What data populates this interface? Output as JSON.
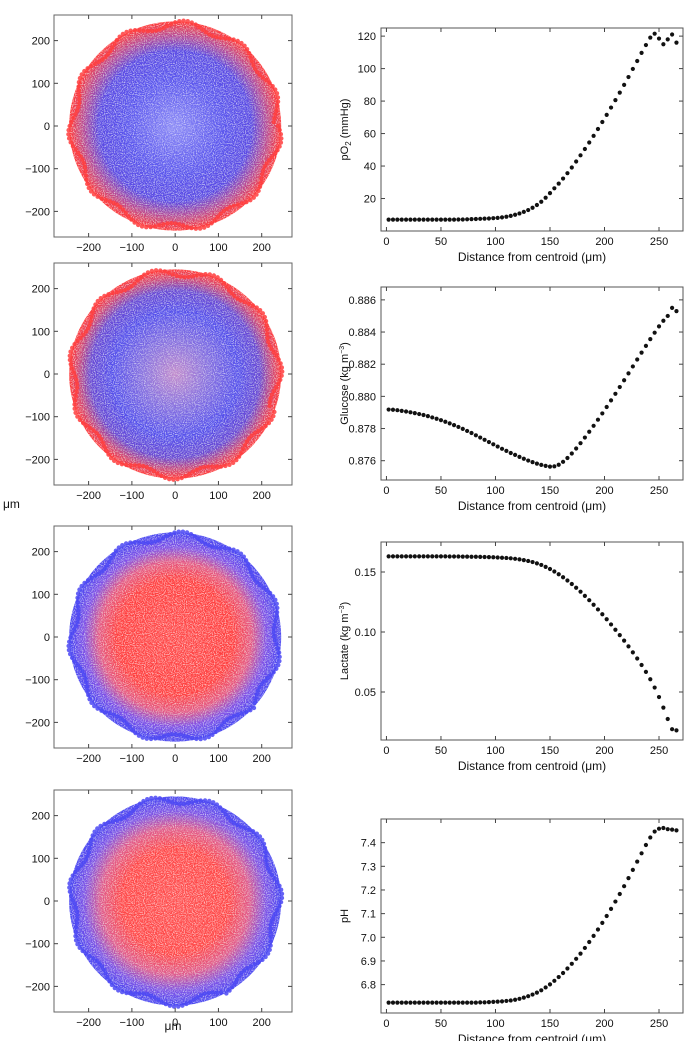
{
  "figure": {
    "shared_xlabel_left": "μm",
    "shared_ylabel_left": "μm",
    "colors": {
      "red": "#ff3b3b",
      "blue": "#4444ff",
      "marker": "#111111"
    }
  },
  "chart_data": [
    {
      "type": "scatter",
      "name": "spheroid-po2-map",
      "title": "",
      "xlim": [
        -280,
        270
      ],
      "ylim": [
        -260,
        260
      ],
      "xticks": [
        -200,
        -100,
        0,
        100,
        200
      ],
      "yticks": [
        -200,
        -100,
        0,
        100,
        200
      ],
      "xtick_labels": [
        "−200",
        "−100",
        "0",
        "100",
        "200"
      ],
      "ytick_labels": [
        "−200",
        "−100",
        "0",
        "100",
        "200"
      ],
      "radius": 245,
      "color_scale": "red = high, blue = low",
      "center_color": "blue",
      "edge_color": "red"
    },
    {
      "type": "scatter",
      "name": "po2-profile",
      "xlabel": "Distance from centroid (μm)",
      "ylabel_parts": [
        "pO",
        "2",
        " (mmHg)"
      ],
      "xlim": [
        -5,
        272
      ],
      "ylim": [
        0,
        125
      ],
      "xticks": [
        0,
        50,
        100,
        150,
        200,
        250
      ],
      "yticks": [
        20,
        40,
        60,
        80,
        100,
        120
      ],
      "xtick_labels": [
        "0",
        "50",
        "100",
        "150",
        "200",
        "250"
      ],
      "ytick_labels": [
        "20",
        "40",
        "60",
        "80",
        "100",
        "120"
      ],
      "x": [
        2,
        6,
        10,
        14,
        18,
        22,
        26,
        30,
        34,
        38,
        42,
        46,
        50,
        54,
        58,
        62,
        66,
        70,
        74,
        78,
        82,
        86,
        90,
        94,
        98,
        102,
        106,
        110,
        114,
        118,
        122,
        126,
        130,
        134,
        138,
        142,
        146,
        150,
        154,
        158,
        162,
        166,
        170,
        174,
        178,
        182,
        186,
        190,
        194,
        198,
        202,
        206,
        210,
        214,
        218,
        222,
        226,
        230,
        234,
        238,
        242,
        246,
        250,
        254,
        258,
        262,
        266
      ],
      "y": [
        7.0,
        7.0,
        7.0,
        7.0,
        7.0,
        7.0,
        7.0,
        7.0,
        7.0,
        7.0,
        7.0,
        7.0,
        7.0,
        7.0,
        7.0,
        7.0,
        7.1,
        7.1,
        7.2,
        7.3,
        7.4,
        7.5,
        7.6,
        7.7,
        7.9,
        8.1,
        8.4,
        8.8,
        9.3,
        10.0,
        10.8,
        11.8,
        12.9,
        14.3,
        16.0,
        18.0,
        20.5,
        23.3,
        26.3,
        29.2,
        32.3,
        35.6,
        39.1,
        42.8,
        46.6,
        50.5,
        54.5,
        58.6,
        62.8,
        67.1,
        71.5,
        76.0,
        80.6,
        85.2,
        90.0,
        94.8,
        99.8,
        104.7,
        109.7,
        114.5,
        119.1,
        121.5,
        118.5,
        115.0,
        118.0,
        121.0,
        116.0
      ]
    },
    {
      "type": "scatter",
      "name": "spheroid-glucose-map",
      "title": "",
      "xlim": [
        -280,
        270
      ],
      "ylim": [
        -260,
        260
      ],
      "xticks": [
        -200,
        -100,
        0,
        100,
        200
      ],
      "yticks": [
        -200,
        -100,
        0,
        100,
        200
      ],
      "xtick_labels": [
        "−200",
        "−100",
        "0",
        "100",
        "200"
      ],
      "ytick_labels": [
        "−200",
        "−100",
        "0",
        "100",
        "200"
      ],
      "radius": 245,
      "color_scale": "red = high, blue = low",
      "center_color": "purple",
      "edge_color": "red"
    },
    {
      "type": "scatter",
      "name": "glucose-profile",
      "xlabel": "Distance from centroid (μm)",
      "ylabel_parts": [
        "Glucose (kg m",
        "−3",
        ")"
      ],
      "xlim": [
        -5,
        272
      ],
      "ylim": [
        0.8748,
        0.8868
      ],
      "xticks": [
        0,
        50,
        100,
        150,
        200,
        250
      ],
      "yticks": [
        0.876,
        0.878,
        0.88,
        0.882,
        0.884,
        0.886
      ],
      "xtick_labels": [
        "0",
        "50",
        "100",
        "150",
        "200",
        "250"
      ],
      "ytick_labels": [
        "0.876",
        "0.878",
        "0.880",
        "0.882",
        "0.884",
        "0.886"
      ],
      "x": [
        2,
        6,
        10,
        14,
        18,
        22,
        26,
        30,
        34,
        38,
        42,
        46,
        50,
        54,
        58,
        62,
        66,
        70,
        74,
        78,
        82,
        86,
        90,
        94,
        98,
        102,
        106,
        110,
        114,
        118,
        122,
        126,
        130,
        134,
        138,
        142,
        146,
        150,
        154,
        158,
        162,
        166,
        170,
        174,
        178,
        182,
        186,
        190,
        194,
        198,
        202,
        206,
        210,
        214,
        218,
        222,
        226,
        230,
        234,
        238,
        242,
        246,
        250,
        254,
        258,
        262,
        266
      ],
      "y": [
        0.87918,
        0.87917,
        0.87914,
        0.8791,
        0.87906,
        0.87901,
        0.87896,
        0.8789,
        0.87884,
        0.87877,
        0.87869,
        0.87861,
        0.87852,
        0.87842,
        0.87832,
        0.87821,
        0.8781,
        0.87798,
        0.87785,
        0.87772,
        0.87758,
        0.87744,
        0.8773,
        0.87716,
        0.87702,
        0.87688,
        0.87674,
        0.87661,
        0.87648,
        0.87636,
        0.87624,
        0.87612,
        0.87601,
        0.87591,
        0.87582,
        0.87574,
        0.87568,
        0.87563,
        0.87565,
        0.87575,
        0.87593,
        0.87617,
        0.87645,
        0.87676,
        0.87709,
        0.87744,
        0.8778,
        0.87817,
        0.87855,
        0.87894,
        0.87934,
        0.87975,
        0.88016,
        0.88058,
        0.881,
        0.88143,
        0.88186,
        0.88229,
        0.88272,
        0.88314,
        0.88356,
        0.88396,
        0.88435,
        0.8847,
        0.885,
        0.8855,
        0.8853
      ]
    },
    {
      "type": "scatter",
      "name": "spheroid-lactate-map",
      "title": "",
      "xlim": [
        -280,
        270
      ],
      "ylim": [
        -260,
        260
      ],
      "xticks": [
        -200,
        -100,
        0,
        100,
        200
      ],
      "yticks": [
        -200,
        -100,
        0,
        100,
        200
      ],
      "xtick_labels": [
        "−200",
        "−100",
        "0",
        "100",
        "200"
      ],
      "ytick_labels": [
        "−200",
        "−100",
        "0",
        "100",
        "200"
      ],
      "radius": 245,
      "color_scale": "red = high, blue = low",
      "center_color": "red",
      "edge_color": "blue"
    },
    {
      "type": "scatter",
      "name": "lactate-profile",
      "xlabel": "Distance from centroid (μm)",
      "ylabel_parts": [
        "Lactate (kg m",
        "−3",
        ")"
      ],
      "xlim": [
        -5,
        272
      ],
      "ylim": [
        0.01,
        0.175
      ],
      "xticks": [
        0,
        50,
        100,
        150,
        200,
        250
      ],
      "yticks": [
        0.05,
        0.1,
        0.15
      ],
      "xtick_labels": [
        "0",
        "50",
        "100",
        "150",
        "200",
        "250"
      ],
      "ytick_labels": [
        "0.05",
        "0.10",
        "0.15"
      ],
      "x": [
        2,
        6,
        10,
        14,
        18,
        22,
        26,
        30,
        34,
        38,
        42,
        46,
        50,
        54,
        58,
        62,
        66,
        70,
        74,
        78,
        82,
        86,
        90,
        94,
        98,
        102,
        106,
        110,
        114,
        118,
        122,
        126,
        130,
        134,
        138,
        142,
        146,
        150,
        154,
        158,
        162,
        166,
        170,
        174,
        178,
        182,
        186,
        190,
        194,
        198,
        202,
        206,
        210,
        214,
        218,
        222,
        226,
        230,
        234,
        238,
        242,
        246,
        250,
        254,
        258,
        262,
        266
      ],
      "y": [
        0.163,
        0.163,
        0.163,
        0.163,
        0.163,
        0.163,
        0.163,
        0.163,
        0.163,
        0.163,
        0.163,
        0.163,
        0.163,
        0.163,
        0.1629,
        0.1629,
        0.1629,
        0.1628,
        0.1628,
        0.1627,
        0.1627,
        0.1626,
        0.1625,
        0.1624,
        0.1623,
        0.1621,
        0.1619,
        0.1617,
        0.1614,
        0.161,
        0.1605,
        0.1599,
        0.1592,
        0.1583,
        0.1572,
        0.1559,
        0.1543,
        0.1525,
        0.1504,
        0.1481,
        0.1456,
        0.1429,
        0.14,
        0.1369,
        0.1336,
        0.1301,
        0.1265,
        0.1227,
        0.1188,
        0.1148,
        0.1106,
        0.1063,
        0.1019,
        0.0974,
        0.0928,
        0.088,
        0.083,
        0.0779,
        0.0725,
        0.0668,
        0.0606,
        0.0537,
        0.0458,
        0.037,
        0.0275,
        0.019,
        0.018
      ]
    },
    {
      "type": "scatter",
      "name": "spheroid-ph-map",
      "title": "",
      "xlim": [
        -280,
        270
      ],
      "ylim": [
        -260,
        260
      ],
      "xticks": [
        -200,
        -100,
        0,
        100,
        200
      ],
      "yticks": [
        -200,
        -100,
        0,
        100,
        200
      ],
      "xtick_labels": [
        "−200",
        "−100",
        "0",
        "100",
        "200"
      ],
      "ytick_labels": [
        "−200",
        "−100",
        "0",
        "100",
        "200"
      ],
      "radius": 245,
      "color_scale": "red = high, blue = low",
      "center_color": "red",
      "edge_color": "blue"
    },
    {
      "type": "scatter",
      "name": "ph-profile",
      "xlabel": "Distance from centroid (μm)",
      "ylabel_parts": [
        "pH",
        "",
        ""
      ],
      "xlim": [
        -5,
        272
      ],
      "ylim": [
        6.68,
        7.5
      ],
      "xticks": [
        0,
        50,
        100,
        150,
        200,
        250
      ],
      "yticks": [
        6.8,
        6.9,
        7.0,
        7.1,
        7.2,
        7.3,
        7.4
      ],
      "xtick_labels": [
        "0",
        "50",
        "100",
        "150",
        "200",
        "250"
      ],
      "ytick_labels": [
        "6.8",
        "6.9",
        "7.0",
        "7.1",
        "7.2",
        "7.3",
        "7.4"
      ],
      "x": [
        2,
        6,
        10,
        14,
        18,
        22,
        26,
        30,
        34,
        38,
        42,
        46,
        50,
        54,
        58,
        62,
        66,
        70,
        74,
        78,
        82,
        86,
        90,
        94,
        98,
        102,
        106,
        110,
        114,
        118,
        122,
        126,
        130,
        134,
        138,
        142,
        146,
        150,
        154,
        158,
        162,
        166,
        170,
        174,
        178,
        182,
        186,
        190,
        194,
        198,
        202,
        206,
        210,
        214,
        218,
        222,
        226,
        230,
        234,
        238,
        242,
        246,
        250,
        254,
        258,
        262,
        266
      ],
      "y": [
        6.724,
        6.724,
        6.724,
        6.724,
        6.724,
        6.724,
        6.724,
        6.724,
        6.724,
        6.724,
        6.724,
        6.724,
        6.724,
        6.724,
        6.724,
        6.724,
        6.724,
        6.724,
        6.724,
        6.724,
        6.724,
        6.725,
        6.725,
        6.726,
        6.727,
        6.728,
        6.729,
        6.731,
        6.733,
        6.736,
        6.74,
        6.745,
        6.751,
        6.758,
        6.766,
        6.776,
        6.788,
        6.801,
        6.816,
        6.832,
        6.849,
        6.868,
        6.888,
        6.909,
        6.931,
        6.955,
        6.98,
        7.006,
        7.033,
        7.061,
        7.09,
        7.12,
        7.151,
        7.183,
        7.216,
        7.25,
        7.285,
        7.32,
        7.355,
        7.39,
        7.422,
        7.447,
        7.459,
        7.462,
        7.457,
        7.455,
        7.452
      ]
    }
  ]
}
